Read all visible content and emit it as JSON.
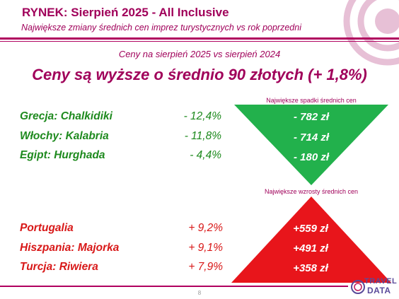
{
  "header": {
    "title": "RYNEK: Sierpień 2025 - All Inclusive",
    "subtitle": "Największe zmiany średnich cen imprez turystycznych vs rok poprzedni"
  },
  "summary": {
    "caption": "Ceny na sierpień 2025 vs sierpień 2024",
    "headline": "Ceny są wyższe o średnio 90 złotych (+ 1,8%)"
  },
  "decreases": {
    "label": "Największe spadki średnich cen",
    "rows": [
      {
        "destination": "Grecja: Chalkidiki",
        "change": "- 12,4%",
        "amount": "- 782 zł"
      },
      {
        "destination": "Włochy: Kalabria",
        "change": "- 11,8%",
        "amount": "- 714 zł"
      },
      {
        "destination": "Egipt: Hurghada",
        "change": "- 4,4%",
        "amount": "- 180 zł"
      }
    ],
    "color": "#22b14c"
  },
  "increases": {
    "label": "Największe wzrosty średnich cen",
    "rows": [
      {
        "destination": "Portugalia",
        "change": "+ 9,2%",
        "amount": "+559 zł"
      },
      {
        "destination": "Hiszpania: Majorka",
        "change": "+ 9,1%",
        "amount": "+491 zł"
      },
      {
        "destination": "Turcja: Riwiera",
        "change": "+ 7,9%",
        "amount": "+358 zł"
      }
    ],
    "color": "#e8151b"
  },
  "footer": {
    "page_number": "8",
    "logo_top": "TRAVEL",
    "logo_bottom": "DATA"
  }
}
